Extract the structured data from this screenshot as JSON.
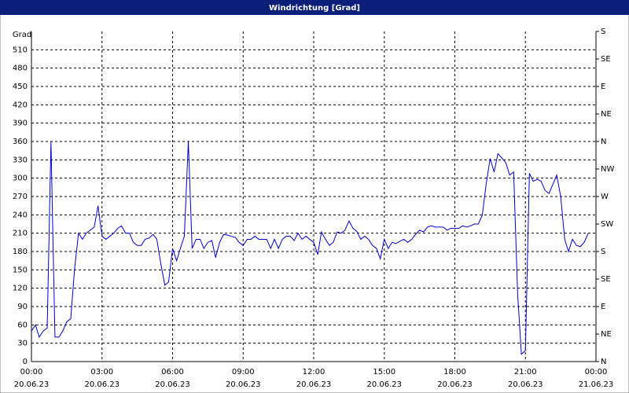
{
  "chart_data": {
    "type": "line",
    "title": "Windrichtung [Grad]",
    "ylabel": "Grad",
    "x": [
      0,
      0.17,
      0.33,
      0.5,
      0.67,
      0.83,
      1,
      1.17,
      1.33,
      1.5,
      1.67,
      1.83,
      2,
      2.17,
      2.33,
      2.5,
      2.67,
      2.83,
      3,
      3.17,
      3.33,
      3.5,
      3.67,
      3.83,
      4,
      4.17,
      4.33,
      4.5,
      4.67,
      4.83,
      5,
      5.17,
      5.33,
      5.5,
      5.67,
      5.83,
      6,
      6.17,
      6.33,
      6.5,
      6.67,
      6.83,
      7,
      7.17,
      7.33,
      7.5,
      7.67,
      7.83,
      8,
      8.17,
      8.33,
      8.5,
      8.67,
      8.83,
      9,
      9.17,
      9.33,
      9.5,
      9.67,
      9.83,
      10,
      10.17,
      10.33,
      10.5,
      10.67,
      10.83,
      11,
      11.17,
      11.33,
      11.5,
      11.67,
      11.83,
      12,
      12.17,
      12.33,
      12.5,
      12.67,
      12.83,
      13,
      13.17,
      13.33,
      13.5,
      13.67,
      13.83,
      14,
      14.17,
      14.33,
      14.5,
      14.67,
      14.83,
      15,
      15.17,
      15.33,
      15.5,
      15.67,
      15.83,
      16,
      16.17,
      16.33,
      16.5,
      16.67,
      16.83,
      17,
      17.17,
      17.33,
      17.5,
      17.67,
      17.83,
      18,
      18.17,
      18.33,
      18.5,
      18.67,
      18.83,
      19,
      19.17,
      19.33,
      19.5,
      19.67,
      19.83,
      20,
      20.17,
      20.33,
      20.5,
      20.67,
      20.83,
      21,
      21.17,
      21.33,
      21.5,
      21.67,
      21.83,
      22,
      22.17,
      22.33,
      22.5,
      22.67,
      22.83,
      23,
      23.17,
      23.33,
      23.5,
      23.67
    ],
    "series": [
      {
        "color": "#0000cc",
        "values": [
          50,
          60,
          40,
          50,
          55,
          360,
          40,
          40,
          50,
          65,
          70,
          150,
          210,
          200,
          210,
          215,
          220,
          255,
          205,
          200,
          205,
          210,
          218,
          222,
          210,
          210,
          195,
          190,
          190,
          200,
          202,
          208,
          200,
          160,
          125,
          130,
          185,
          165,
          185,
          205,
          360,
          185,
          200,
          200,
          185,
          195,
          198,
          170,
          195,
          208,
          207,
          205,
          203,
          195,
          190,
          200,
          200,
          205,
          200,
          200,
          200,
          185,
          200,
          185,
          200,
          205,
          205,
          198,
          210,
          200,
          205,
          200,
          195,
          175,
          212,
          200,
          190,
          195,
          212,
          210,
          215,
          230,
          218,
          213,
          200,
          205,
          200,
          190,
          185,
          168,
          200,
          185,
          195,
          193,
          197,
          200,
          195,
          200,
          208,
          215,
          212,
          220,
          222,
          220,
          220,
          220,
          215,
          218,
          218,
          218,
          222,
          220,
          222,
          225,
          225,
          240,
          290,
          332,
          310,
          340,
          333,
          325,
          305,
          310,
          110,
          12,
          18,
          308,
          295,
          298,
          295,
          280,
          275,
          290,
          305,
          270,
          200,
          180,
          200,
          190,
          188,
          195,
          210
        ]
      }
    ],
    "xlim": [
      0,
      24
    ],
    "xticks": [
      {
        "value": 0,
        "label": "00:00",
        "sublabel": "20.06.23"
      },
      {
        "value": 3,
        "label": "03:00",
        "sublabel": "20.06.23"
      },
      {
        "value": 6,
        "label": "06:00",
        "sublabel": "20.06.23"
      },
      {
        "value": 9,
        "label": "09:00",
        "sublabel": "20.06.23"
      },
      {
        "value": 12,
        "label": "12:00",
        "sublabel": "20.06.23"
      },
      {
        "value": 15,
        "label": "15:00",
        "sublabel": "20.06.23"
      },
      {
        "value": 18,
        "label": "18:00",
        "sublabel": "20.06.23"
      },
      {
        "value": 21,
        "label": "21:00",
        "sublabel": "20.06.23"
      },
      {
        "value": 24,
        "label": "00:00",
        "sublabel": "21.06.23"
      }
    ],
    "ylim": [
      0,
      540
    ],
    "yticks": [
      0,
      30,
      60,
      90,
      120,
      150,
      180,
      210,
      240,
      270,
      300,
      330,
      360,
      390,
      420,
      450,
      480,
      510
    ],
    "y2lim": [
      0,
      540
    ],
    "y2ticks": [
      {
        "value": 0,
        "label": "N"
      },
      {
        "value": 45,
        "label": "NE"
      },
      {
        "value": 90,
        "label": "E"
      },
      {
        "value": 135,
        "label": "SE"
      },
      {
        "value": 180,
        "label": "S"
      },
      {
        "value": 225,
        "label": "SW"
      },
      {
        "value": 270,
        "label": "W"
      },
      {
        "value": 315,
        "label": "NW"
      },
      {
        "value": 360,
        "label": "N"
      },
      {
        "value": 405,
        "label": "NE"
      },
      {
        "value": 450,
        "label": "E"
      },
      {
        "value": 495,
        "label": "SE"
      },
      {
        "value": 540,
        "label": "S"
      }
    ],
    "grid": true
  }
}
